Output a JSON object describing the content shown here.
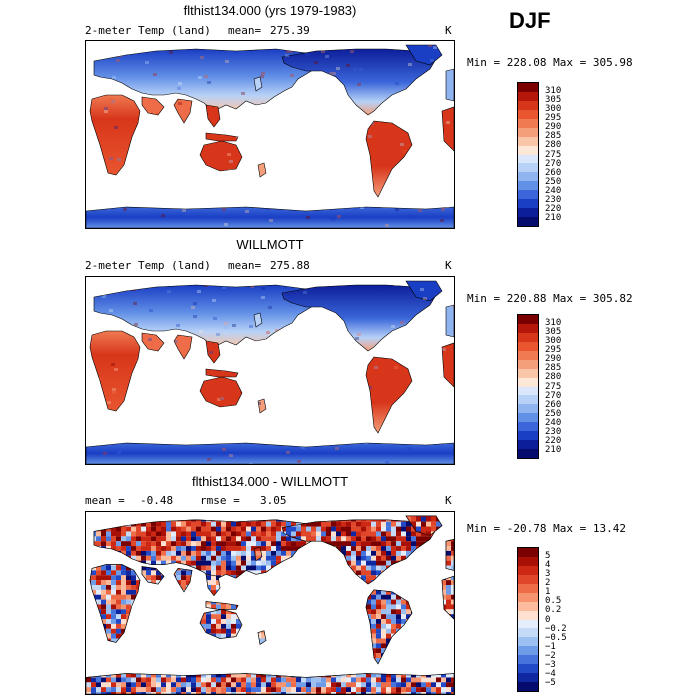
{
  "season": "DJF",
  "panels": [
    {
      "title": "flthist134.000 (yrs 1979-1983)",
      "subtitle": "2-meter Temp (land)",
      "mean_label": "mean=",
      "mean_value": "275.39",
      "units": "K",
      "minmax": "Min = 228.08 Max = 305.98",
      "levels": [
        "310",
        "305",
        "300",
        "295",
        "290",
        "285",
        "280",
        "275",
        "270",
        "260",
        "250",
        "240",
        "230",
        "220",
        "210"
      ],
      "colors": [
        "#7a0000",
        "#b5180a",
        "#d8361a",
        "#e8552f",
        "#f07a52",
        "#f59e7a",
        "#f9c6a8",
        "#fde8d8",
        "#dbe8fb",
        "#b7d1f7",
        "#8fb4f0",
        "#6290e6",
        "#3a66d9",
        "#1a3ec4",
        "#0d1e9a",
        "#050c6e"
      ],
      "kind": "temp"
    },
    {
      "title": "WILLMOTT",
      "subtitle": "2-meter Temp (land)",
      "mean_label": "mean=",
      "mean_value": "275.88",
      "units": "K",
      "minmax": "Min = 220.88 Max = 305.82",
      "levels": [
        "310",
        "305",
        "300",
        "295",
        "290",
        "285",
        "280",
        "275",
        "270",
        "260",
        "250",
        "240",
        "230",
        "220",
        "210"
      ],
      "colors": [
        "#7a0000",
        "#b5180a",
        "#d8361a",
        "#e8552f",
        "#f07a52",
        "#f59e7a",
        "#f9c6a8",
        "#fde8d8",
        "#dbe8fb",
        "#b7d1f7",
        "#8fb4f0",
        "#6290e6",
        "#3a66d9",
        "#1a3ec4",
        "#0d1e9a",
        "#050c6e"
      ],
      "kind": "temp"
    },
    {
      "title": "flthist134.000 - WILLMOTT",
      "mean_label": "mean =",
      "mean_value": "-0.48",
      "rmse_label": "rmse =",
      "rmse_value": "3.05",
      "units": "K",
      "minmax": "Min = -20.78 Max =   13.42",
      "levels": [
        "5",
        "4",
        "3",
        "2",
        "1",
        "0.5",
        "0.2",
        "0",
        "−0.2",
        "−0.5",
        "−1",
        "−2",
        "−3",
        "−4",
        "−5"
      ],
      "colors": [
        "#7a0000",
        "#a80f05",
        "#cc2814",
        "#e0472a",
        "#ee6c48",
        "#f5946f",
        "#fbbb9c",
        "#fde0d0",
        "#e3edfb",
        "#c4daf7",
        "#9cc0f1",
        "#6f9ce8",
        "#4474dc",
        "#2249c6",
        "#0f27a0",
        "#050c6e"
      ],
      "kind": "diff"
    }
  ]
}
